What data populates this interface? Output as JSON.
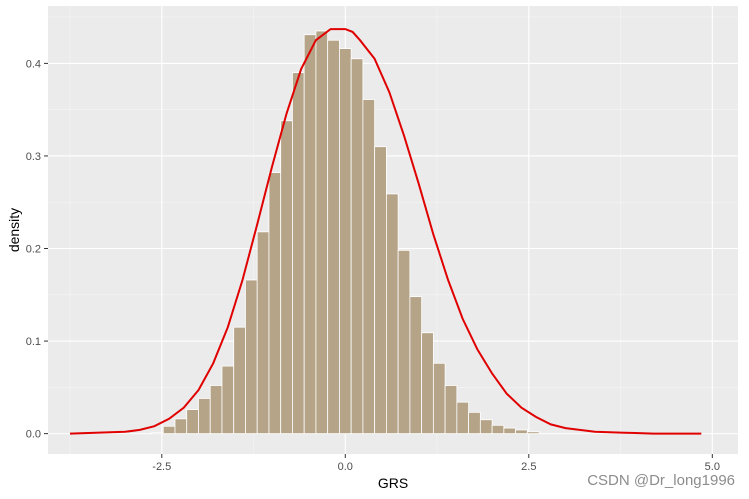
{
  "chart_data": {
    "type": "bar",
    "xlabel": "GRS",
    "ylabel": "density",
    "xlim": [
      -4.05,
      5.35
    ],
    "ylim": [
      -0.022,
      0.462
    ],
    "x_ticks": [
      -2.5,
      0.0,
      2.5,
      5.0
    ],
    "x_tick_labels": [
      "-2.5",
      "0.0",
      "2.5",
      "5.0"
    ],
    "y_ticks": [
      0.0,
      0.1,
      0.2,
      0.3,
      0.4
    ],
    "y_tick_labels": [
      "0.0",
      "0.1",
      "0.2",
      "0.3",
      "0.4"
    ],
    "grid": true,
    "bin_width": 0.16,
    "bins": [
      {
        "x": -2.56,
        "y": 0.001
      },
      {
        "x": -2.4,
        "y": 0.008
      },
      {
        "x": -2.24,
        "y": 0.016
      },
      {
        "x": -2.08,
        "y": 0.026
      },
      {
        "x": -1.92,
        "y": 0.038
      },
      {
        "x": -1.76,
        "y": 0.052
      },
      {
        "x": -1.6,
        "y": 0.073
      },
      {
        "x": -1.44,
        "y": 0.115
      },
      {
        "x": -1.28,
        "y": 0.166
      },
      {
        "x": -1.12,
        "y": 0.218
      },
      {
        "x": -0.96,
        "y": 0.282
      },
      {
        "x": -0.8,
        "y": 0.338
      },
      {
        "x": -0.64,
        "y": 0.39
      },
      {
        "x": -0.48,
        "y": 0.431
      },
      {
        "x": -0.32,
        "y": 0.435
      },
      {
        "x": -0.16,
        "y": 0.425
      },
      {
        "x": 0.0,
        "y": 0.416
      },
      {
        "x": 0.16,
        "y": 0.405
      },
      {
        "x": 0.32,
        "y": 0.361
      },
      {
        "x": 0.48,
        "y": 0.31
      },
      {
        "x": 0.64,
        "y": 0.259
      },
      {
        "x": 0.8,
        "y": 0.198
      },
      {
        "x": 0.96,
        "y": 0.148
      },
      {
        "x": 1.12,
        "y": 0.109
      },
      {
        "x": 1.28,
        "y": 0.076
      },
      {
        "x": 1.44,
        "y": 0.052
      },
      {
        "x": 1.6,
        "y": 0.034
      },
      {
        "x": 1.76,
        "y": 0.023
      },
      {
        "x": 1.92,
        "y": 0.015
      },
      {
        "x": 2.08,
        "y": 0.009
      },
      {
        "x": 2.24,
        "y": 0.006
      },
      {
        "x": 2.4,
        "y": 0.004
      },
      {
        "x": 2.56,
        "y": 0.002
      }
    ],
    "density_curve": [
      [
        -3.75,
        0.0
      ],
      [
        -3.4,
        0.001
      ],
      [
        -3.0,
        0.002
      ],
      [
        -2.8,
        0.004
      ],
      [
        -2.6,
        0.008
      ],
      [
        -2.4,
        0.016
      ],
      [
        -2.2,
        0.028
      ],
      [
        -2.0,
        0.047
      ],
      [
        -1.8,
        0.076
      ],
      [
        -1.6,
        0.115
      ],
      [
        -1.4,
        0.166
      ],
      [
        -1.2,
        0.226
      ],
      [
        -1.0,
        0.288
      ],
      [
        -0.8,
        0.346
      ],
      [
        -0.6,
        0.394
      ],
      [
        -0.4,
        0.425
      ],
      [
        -0.2,
        0.437
      ],
      [
        0.0,
        0.437
      ],
      [
        0.1,
        0.434
      ],
      [
        0.2,
        0.425
      ],
      [
        0.4,
        0.405
      ],
      [
        0.6,
        0.369
      ],
      [
        0.8,
        0.322
      ],
      [
        1.0,
        0.27
      ],
      [
        1.2,
        0.215
      ],
      [
        1.4,
        0.166
      ],
      [
        1.6,
        0.124
      ],
      [
        1.8,
        0.091
      ],
      [
        2.0,
        0.065
      ],
      [
        2.2,
        0.043
      ],
      [
        2.4,
        0.028
      ],
      [
        2.6,
        0.018
      ],
      [
        2.8,
        0.01
      ],
      [
        3.0,
        0.006
      ],
      [
        3.4,
        0.002
      ],
      [
        3.8,
        0.001
      ],
      [
        4.2,
        0.0
      ],
      [
        4.85,
        0.0
      ]
    ],
    "colors": {
      "panel": "#ebebeb",
      "grid_major": "#ffffff",
      "grid_minor": "#f5f5f5",
      "bar_fill": "#b5a488",
      "bar_border": "#ffffff",
      "density_line": "#e00000"
    }
  },
  "watermark": "CSDN @Dr_long1996"
}
